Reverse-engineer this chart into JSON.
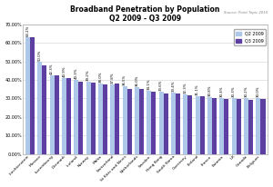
{
  "title_line1": "Broadband Penetration by Population",
  "title_line2": "Q2 2009 - Q3 2009",
  "source": "Source: Point Topic 2010",
  "countries": [
    "Liechtenstein",
    "Monaco",
    "Luxembourg",
    "Denmark",
    "Iceland",
    "Norway",
    "Malta",
    "Switzerland",
    "St Kitts and Nevis",
    "Netherlands",
    "Sweden",
    "Hong Kong",
    "South Korea",
    "Guernsey",
    "Finland",
    "France",
    "Estonia",
    "UK",
    "Canada",
    "Belgium"
  ],
  "q2_values": [
    63.22,
    50.0,
    42.3,
    40.9,
    40.3,
    39.2,
    38.0,
    37.8,
    36.5,
    36.0,
    34.1,
    33.6,
    33.4,
    32.3,
    31.1,
    30.8,
    30.4,
    30.3,
    30.2,
    30.0
  ],
  "q3_values": [
    63.22,
    48.0,
    42.3,
    40.9,
    39.2,
    38.8,
    37.8,
    38.0,
    35.0,
    35.0,
    33.5,
    32.5,
    32.5,
    31.8,
    31.0,
    30.2,
    29.8,
    29.8,
    29.5,
    29.8
  ],
  "q2_color": "#adc8e8",
  "q3_color": "#5c3fa0",
  "ylim": [
    0,
    70
  ],
  "yticks": [
    0,
    10,
    20,
    30,
    40,
    50,
    60,
    70
  ],
  "background_color": "#ffffff",
  "grid_color": "#d0d0d0"
}
